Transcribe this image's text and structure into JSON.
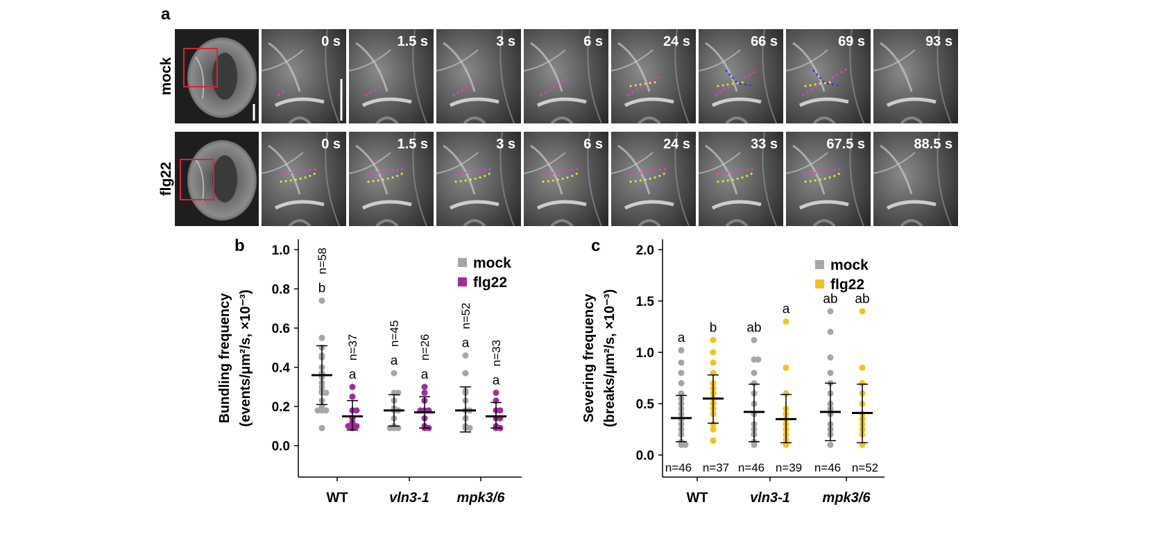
{
  "panel_a": {
    "label": "a",
    "rows": [
      {
        "label": "mock",
        "times": [
          "0 s",
          "1.5 s",
          "3 s",
          "6 s",
          "24 s",
          "66 s",
          "69 s",
          "93 s"
        ]
      },
      {
        "label": "flg22",
        "times": [
          "0 s",
          "1.5 s",
          "3 s",
          "6 s",
          "24 s",
          "33 s",
          "67.5 s",
          "88.5 s"
        ]
      }
    ]
  },
  "chart_data": [
    {
      "type": "dot",
      "panel_label": "b",
      "ylabel": [
        "Bundling frequency",
        "(events/μm²/s, ×10⁻³)"
      ],
      "categories": [
        "WT",
        "vln3-1",
        "mpk3/6"
      ],
      "ylim": [
        -0.1,
        1.0
      ],
      "yticks": [
        {
          "value": 0,
          "label": "0.0"
        },
        0.2,
        0.4,
        0.6,
        0.8,
        {
          "value": 1,
          "label": "1.0"
        }
      ],
      "legend": "upper right",
      "series": [
        {
          "name": "mock",
          "color": "#a6a6a6",
          "values": [
            0.36,
            0.18,
            0.18
          ],
          "lower": [
            0.21,
            0.1,
            0.07
          ],
          "upper": [
            0.51,
            0.26,
            0.3
          ],
          "n_labels": [
            "n=58",
            "n=45",
            "n=52"
          ],
          "letters": [
            "b",
            "a",
            "a"
          ],
          "points": [
            [
              0.09,
              0.18,
              0.18,
              0.18,
              0.2,
              0.23,
              0.27,
              0.27,
              0.28,
              0.3,
              0.32,
              0.35,
              0.36,
              0.37,
              0.4,
              0.45,
              0.46,
              0.5,
              0.55,
              0.74
            ],
            [
              0.09,
              0.09,
              0.09,
              0.1,
              0.14,
              0.18,
              0.18,
              0.19,
              0.23,
              0.27,
              0.27,
              0.37
            ],
            [
              0.09,
              0.09,
              0.1,
              0.14,
              0.18,
              0.18,
              0.23,
              0.27,
              0.28,
              0.37,
              0.46
            ]
          ]
        },
        {
          "name": "flg22",
          "color": "#a3299e",
          "values": [
            0.15,
            0.17,
            0.15
          ],
          "lower": [
            0.08,
            0.09,
            0.09
          ],
          "upper": [
            0.23,
            0.25,
            0.22
          ],
          "n_labels": [
            "n=37",
            "n=26",
            "n=33"
          ],
          "letters": [
            "a",
            "a",
            "a"
          ],
          "points": [
            [
              0.09,
              0.1,
              0.1,
              0.1,
              0.11,
              0.12,
              0.14,
              0.18,
              0.18,
              0.25,
              0.3
            ],
            [
              0.09,
              0.09,
              0.1,
              0.14,
              0.18,
              0.18,
              0.18,
              0.23,
              0.27,
              0.3
            ],
            [
              0.09,
              0.09,
              0.1,
              0.14,
              0.14,
              0.18,
              0.18,
              0.23,
              0.27
            ]
          ]
        }
      ]
    },
    {
      "type": "dot",
      "panel_label": "c",
      "ylabel": [
        "Severing frequency",
        "(breaks/μm²/s, ×10⁻³)"
      ],
      "categories": [
        "WT",
        "vln3-1",
        "mpk3/6"
      ],
      "ylim": [
        -0.1,
        2.0
      ],
      "yticks": [
        {
          "value": 0,
          "label": "0.0"
        },
        0.5,
        {
          "value": 1,
          "label": "1.0"
        },
        1.5,
        {
          "value": 2,
          "label": "2.0"
        }
      ],
      "legend": "upper right",
      "series": [
        {
          "name": "mock",
          "color": "#a6a6a6",
          "values": [
            0.36,
            0.42,
            0.42
          ],
          "lower": [
            0.13,
            0.13,
            0.14
          ],
          "upper": [
            0.58,
            0.69,
            0.7
          ],
          "n_labels": [
            "n=46",
            "n=46",
            "n=46"
          ],
          "letters": [
            "a",
            "ab",
            "ab"
          ],
          "points": [
            [
              0.1,
              0.1,
              0.13,
              0.2,
              0.25,
              0.3,
              0.35,
              0.4,
              0.45,
              0.5,
              0.55,
              0.6,
              0.7,
              0.8,
              0.9,
              1.02
            ],
            [
              0.1,
              0.13,
              0.2,
              0.25,
              0.3,
              0.4,
              0.5,
              0.6,
              0.7,
              0.8,
              0.93,
              0.93,
              1.12
            ],
            [
              0.1,
              0.2,
              0.25,
              0.3,
              0.4,
              0.45,
              0.5,
              0.6,
              0.7,
              0.8,
              0.95,
              1.2,
              1.4
            ]
          ]
        },
        {
          "name": "flg22",
          "color": "#f5c218",
          "values": [
            0.55,
            0.35,
            0.41
          ],
          "lower": [
            0.31,
            0.12,
            0.12
          ],
          "upper": [
            0.78,
            0.59,
            0.69
          ],
          "n_labels": [
            "n=37",
            "n=39",
            "n=52"
          ],
          "letters": [
            "b",
            "a",
            "ab"
          ],
          "points": [
            [
              0.14,
              0.25,
              0.3,
              0.4,
              0.45,
              0.5,
              0.55,
              0.6,
              0.65,
              0.7,
              0.8,
              0.9,
              1.0,
              1.12
            ],
            [
              0.1,
              0.15,
              0.2,
              0.25,
              0.3,
              0.35,
              0.4,
              0.45,
              0.6,
              0.85,
              1.3
            ],
            [
              0.1,
              0.2,
              0.25,
              0.3,
              0.35,
              0.4,
              0.5,
              0.6,
              0.7,
              0.85,
              1.4
            ]
          ]
        }
      ]
    }
  ]
}
